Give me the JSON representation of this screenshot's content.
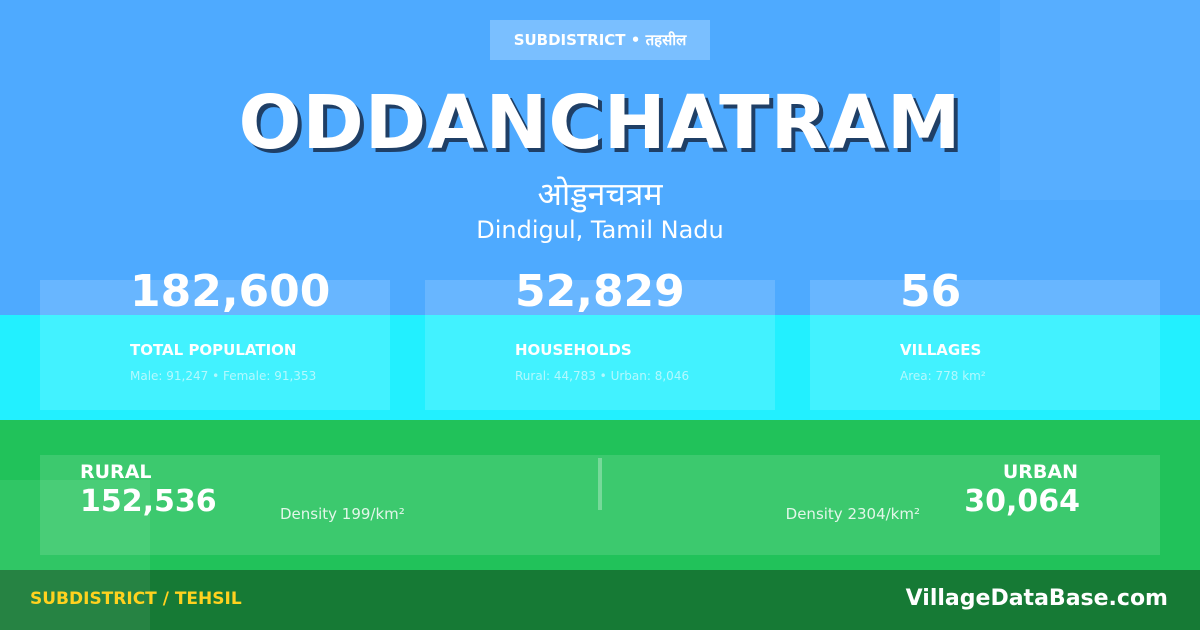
{
  "badge": "SUBDISTRICT • तहसील",
  "title": "ODDANCHATRAM",
  "title_hindi": "ओड्डनचत्रम",
  "location": "Dindigul, Tamil Nadu",
  "stats": [
    {
      "value": "182,600",
      "label": "TOTAL POPULATION",
      "detail": "Male: 91,247 • Female: 91,353"
    },
    {
      "value": "52,829",
      "label": "HOUSEHOLDS",
      "detail": "Rural: 44,783 • Urban: 8,046"
    },
    {
      "value": "56",
      "label": "VILLAGES",
      "detail": "Area: 778 km²"
    }
  ],
  "rural": {
    "label": "RURAL",
    "value": "152,536",
    "density": "Density 199/km²"
  },
  "urban": {
    "label": "URBAN",
    "value": "30,064",
    "density": "Density 2304/km²"
  },
  "footer": {
    "category": "SUBDISTRICT / TEHSIL",
    "site": "VillageDataBase.com"
  }
}
